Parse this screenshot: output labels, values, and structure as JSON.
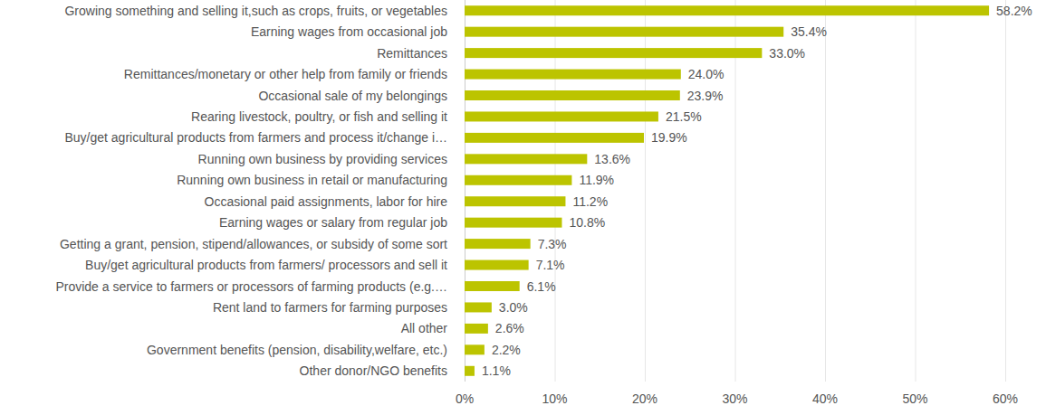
{
  "chart_data": {
    "type": "bar",
    "orientation": "horizontal",
    "categories": [
      "Growing something and selling it,such as crops, fruits, or vegetables",
      "Earning wages from occasional job",
      "Remittances",
      "Remittances/monetary or other help from family or friends",
      "Occasional sale of my belongings",
      "Rearing livestock, poultry, or fish and selling it",
      "Buy/get agricultural products from farmers and process it/change i…",
      "Running own business by providing services",
      "Running own business in retail or manufacturing",
      "Occasional paid assignments, labor for hire",
      "Earning wages or salary from regular job",
      "Getting a grant, pension, stipend/allowances, or subsidy of some sort",
      "Buy/get agricultural products from farmers/ processors and sell it",
      "Provide a service to farmers or processors of farming products (e.g.…",
      "Rent land to farmers for farming purposes",
      "All other",
      "Government benefits (pension, disability,welfare, etc.)",
      "Other donor/NGO benefits"
    ],
    "values": [
      58.2,
      35.4,
      33.0,
      24.0,
      23.9,
      21.5,
      19.9,
      13.6,
      11.9,
      11.2,
      10.8,
      7.3,
      7.1,
      6.1,
      3.0,
      2.6,
      2.2,
      1.1
    ],
    "value_labels": [
      "58.2%",
      "35.4%",
      "33.0%",
      "24.0%",
      "23.9%",
      "21.5%",
      "19.9%",
      "13.6%",
      "11.9%",
      "11.2%",
      "10.8%",
      "7.3%",
      "7.1%",
      "6.1%",
      "3.0%",
      "2.6%",
      "2.2%",
      "1.1%"
    ],
    "color": "#bcc400",
    "xlim": [
      0,
      60
    ],
    "xticks": [
      {
        "value": 0,
        "label": "0%"
      },
      {
        "value": 10,
        "label": "10%"
      },
      {
        "value": 20,
        "label": "20%"
      },
      {
        "value": 30,
        "label": "30%"
      },
      {
        "value": 40,
        "label": "40%"
      },
      {
        "value": 50,
        "label": "50%"
      },
      {
        "value": 60,
        "label": "60%"
      }
    ],
    "grid": true,
    "data_labels": true
  }
}
